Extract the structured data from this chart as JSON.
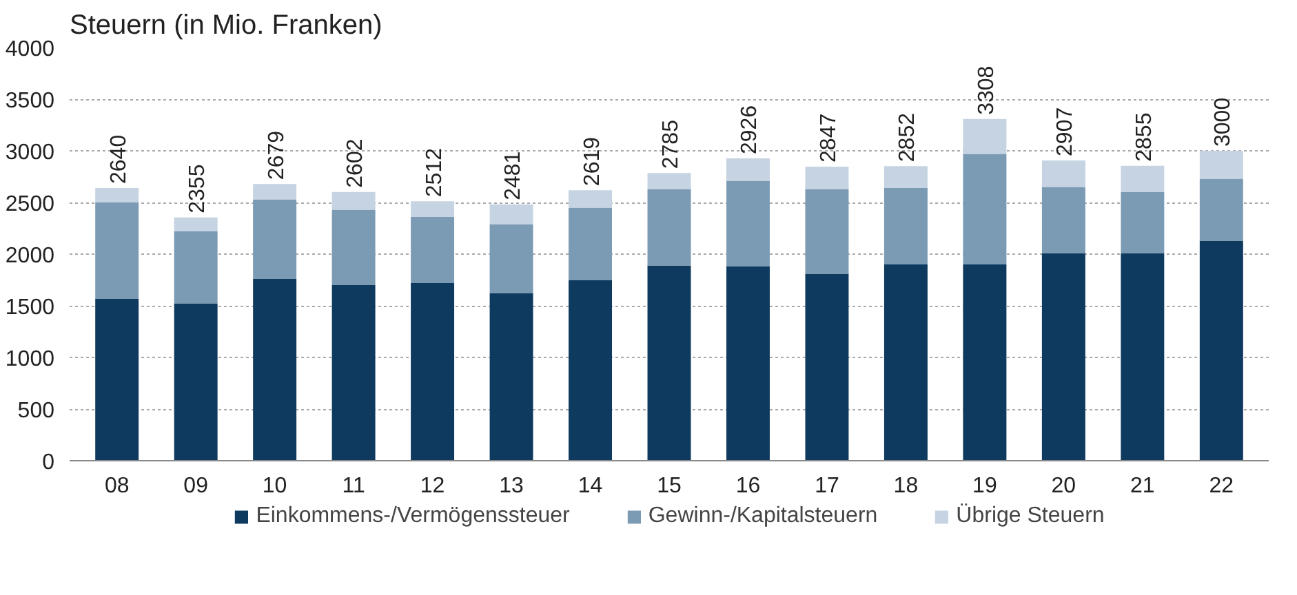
{
  "chart_data": {
    "type": "bar",
    "title": "Steuern (in Mio. Franken)",
    "stacked": true,
    "categories": [
      "08",
      "09",
      "10",
      "11",
      "12",
      "13",
      "14",
      "15",
      "16",
      "17",
      "18",
      "19",
      "20",
      "21",
      "22"
    ],
    "series": [
      {
        "name": "Einkommens-/Vermögenssteuer",
        "color": "#0e3a5f",
        "values": [
          1570,
          1520,
          1760,
          1700,
          1720,
          1620,
          1750,
          1890,
          1880,
          1810,
          1900,
          1900,
          2010,
          2010,
          2130
        ]
      },
      {
        "name": "Gewinn-/Kapitalsteuern",
        "color": "#7b9ab4",
        "values": [
          930,
          700,
          770,
          730,
          640,
          670,
          700,
          740,
          830,
          820,
          740,
          1070,
          640,
          590,
          600
        ]
      },
      {
        "name": "Übrige Steuern",
        "color": "#c5d3e2",
        "values": [
          140,
          135,
          149,
          172,
          152,
          191,
          169,
          155,
          216,
          217,
          212,
          338,
          257,
          255,
          270
        ]
      }
    ],
    "totals": [
      "2640",
      "2355",
      "2679",
      "2602",
      "2512",
      "2481",
      "2619",
      "2785",
      "2926",
      "2847",
      "2852",
      "3308",
      "2907",
      "2855",
      "3000"
    ],
    "ylim": [
      0,
      4000
    ],
    "yticks": [
      0,
      500,
      1000,
      1500,
      2000,
      2500,
      3000,
      3500,
      4000
    ],
    "grid": "y",
    "legend": "bottom"
  }
}
